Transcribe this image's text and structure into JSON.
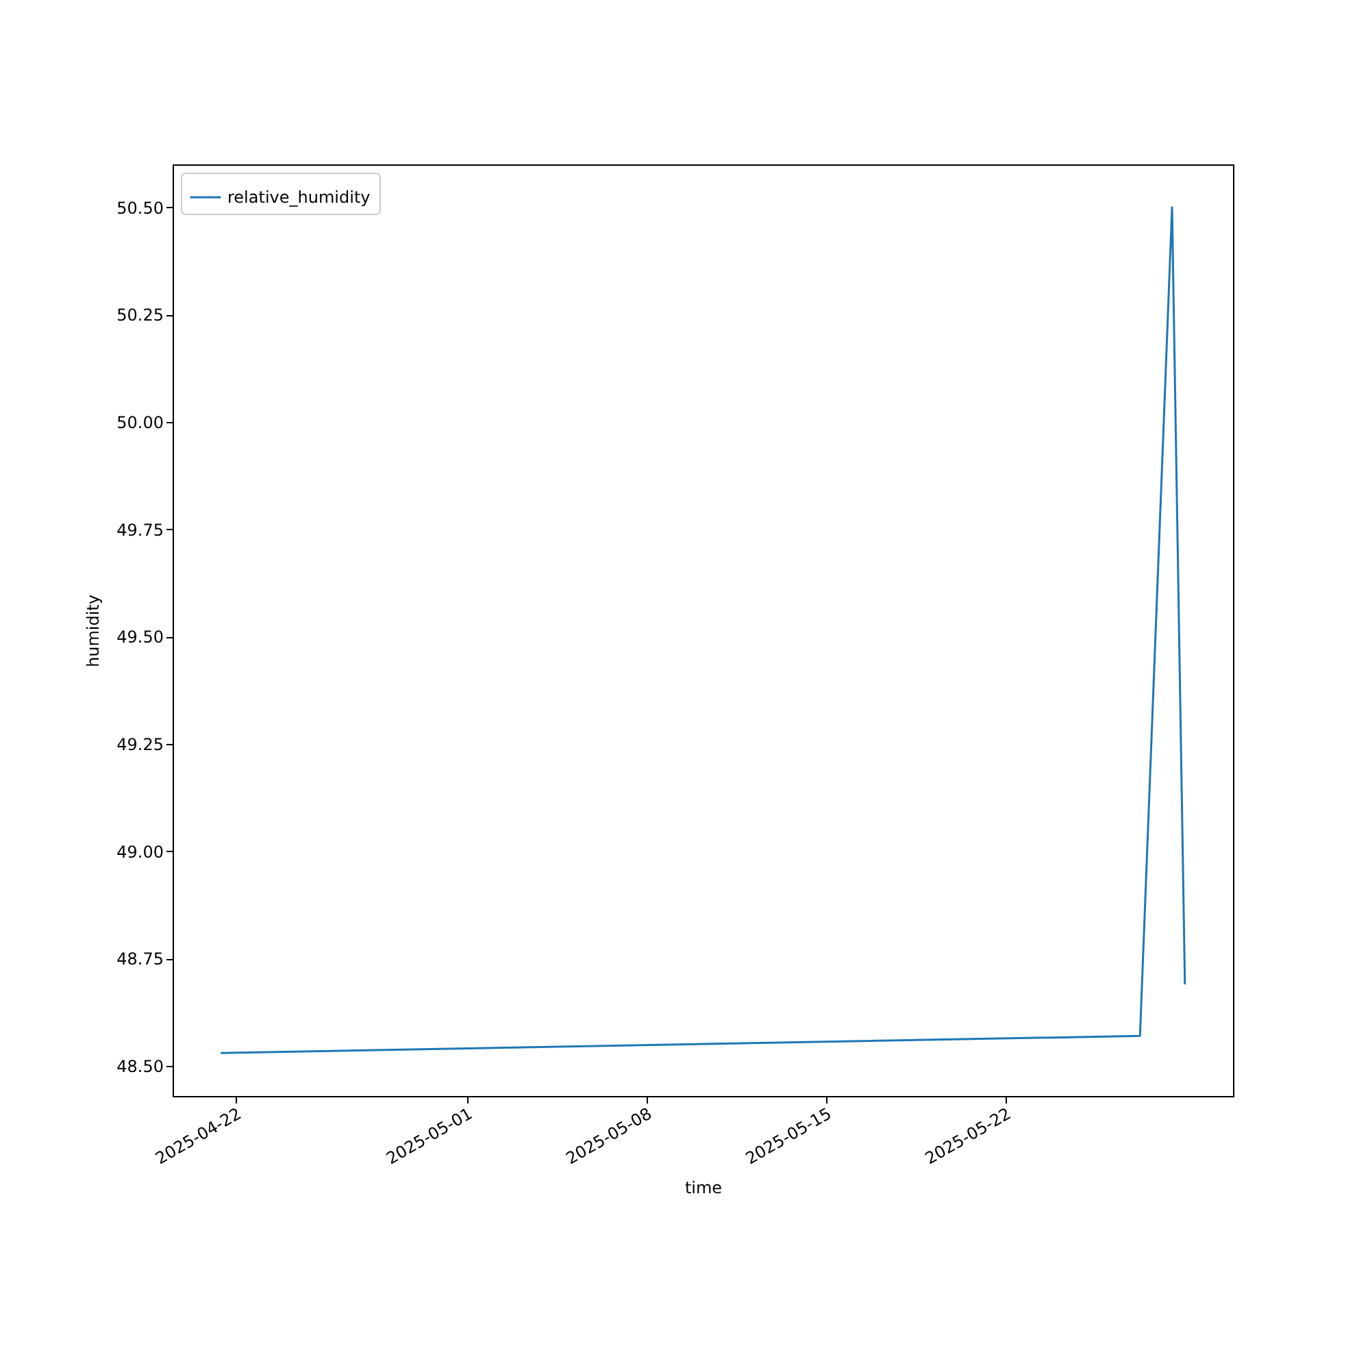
{
  "chart_data": {
    "type": "line",
    "xlabel": "time",
    "ylabel": "humidity",
    "x": [
      "2025-04-21T10:00",
      "2025-05-27T06:00",
      "2025-05-28T12:00",
      "2025-05-29T00:00"
    ],
    "series": [
      {
        "name": "relative_humidity",
        "color": "#1f77b4",
        "values": [
          48.53,
          48.57,
          50.5,
          48.69
        ]
      }
    ],
    "xlim": [
      "2025-04-19T13:00",
      "2025-05-30T21:00"
    ],
    "xticks": [
      "2025-04-22",
      "2025-05-01",
      "2025-05-08",
      "2025-05-15",
      "2025-05-22"
    ],
    "ylim": [
      48.43,
      50.6
    ],
    "yticks": [
      {
        "value": 48.5,
        "label": "48.50"
      },
      {
        "value": 48.75,
        "label": "48.75"
      },
      {
        "value": 49,
        "label": "49.00"
      },
      {
        "value": 49.25,
        "label": "49.25"
      },
      {
        "value": 49.5,
        "label": "49.50"
      },
      {
        "value": 49.75,
        "label": "49.75"
      },
      {
        "value": 50,
        "label": "50.00"
      },
      {
        "value": 50.25,
        "label": "50.25"
      },
      {
        "value": 50.5,
        "label": "50.50"
      }
    ],
    "grid": false,
    "legend": "top left",
    "line_style": "solid",
    "marker": "none"
  }
}
